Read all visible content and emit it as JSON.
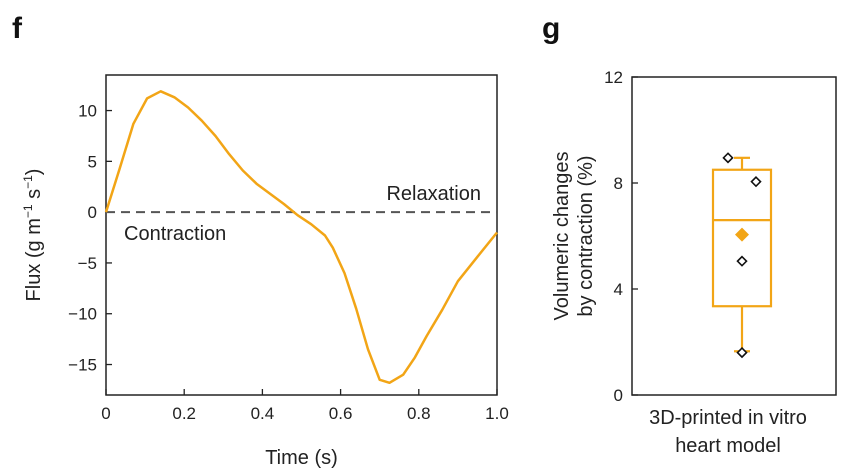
{
  "panels": {
    "f": {
      "label": "f"
    },
    "g": {
      "label": "g"
    }
  },
  "colors": {
    "accent": "#f2a516",
    "axis": "#222222",
    "zero_line": "#555555"
  },
  "chart_data": [
    {
      "type": "line",
      "panel": "f",
      "xlabel": "Time (s)",
      "ylabel_main": "Flux (g m",
      "ylabel_sup1": "−1",
      "ylabel_mid": " s",
      "ylabel_sup2": "−1",
      "ylabel_end": ")",
      "xlim": [
        0,
        1.0
      ],
      "ylim": [
        -18,
        13.5
      ],
      "xticks": [
        0,
        0.2,
        0.4,
        0.6,
        0.8,
        1.0
      ],
      "xtick_labels": [
        "0",
        "0.2",
        "0.4",
        "0.6",
        "0.8",
        "1.0"
      ],
      "yticks": [
        10,
        5,
        0,
        -5,
        -10,
        -15
      ],
      "ytick_labels": [
        "10",
        "5",
        "0",
        "−5",
        "−10",
        "−15"
      ],
      "annotations": {
        "above_zero": "Relaxation",
        "below_zero": "Contraction"
      },
      "zero_line": 0,
      "series": [
        {
          "color": "#f2a516",
          "x": [
            0,
            0.035,
            0.07,
            0.105,
            0.14,
            0.175,
            0.21,
            0.245,
            0.28,
            0.315,
            0.35,
            0.385,
            0.42,
            0.455,
            0.49,
            0.525,
            0.56,
            0.58,
            0.61,
            0.64,
            0.67,
            0.7,
            0.725,
            0.76,
            0.79,
            0.82,
            0.86,
            0.9,
            0.95,
            1.0
          ],
          "y": [
            0,
            4.3,
            8.7,
            11.2,
            11.9,
            11.3,
            10.3,
            9.0,
            7.5,
            5.7,
            4.1,
            2.8,
            1.8,
            0.8,
            -0.3,
            -1.2,
            -2.3,
            -3.5,
            -6.0,
            -9.5,
            -13.5,
            -16.5,
            -16.8,
            -16.0,
            -14.3,
            -12.2,
            -9.6,
            -6.8,
            -4.4,
            -2.0
          ]
        }
      ]
    },
    {
      "type": "box",
      "panel": "g",
      "ylabel_line1": "Volumeric changes",
      "ylabel_line2": "by contraction (%)",
      "xlabel_line1": "3D-printed in vitro",
      "xlabel_line2": "heart model",
      "ylim": [
        0,
        12
      ],
      "yticks": [
        0,
        4,
        8,
        12
      ],
      "ytick_labels": [
        "0",
        "4",
        "8",
        "12"
      ],
      "box": {
        "whisker_low": 1.65,
        "q1": 3.35,
        "median": 6.6,
        "q3": 8.5,
        "whisker_high": 8.95,
        "mean": 6.05
      },
      "points": [
        8.95,
        8.05,
        5.05,
        1.6
      ],
      "color": "#f2a516"
    }
  ]
}
